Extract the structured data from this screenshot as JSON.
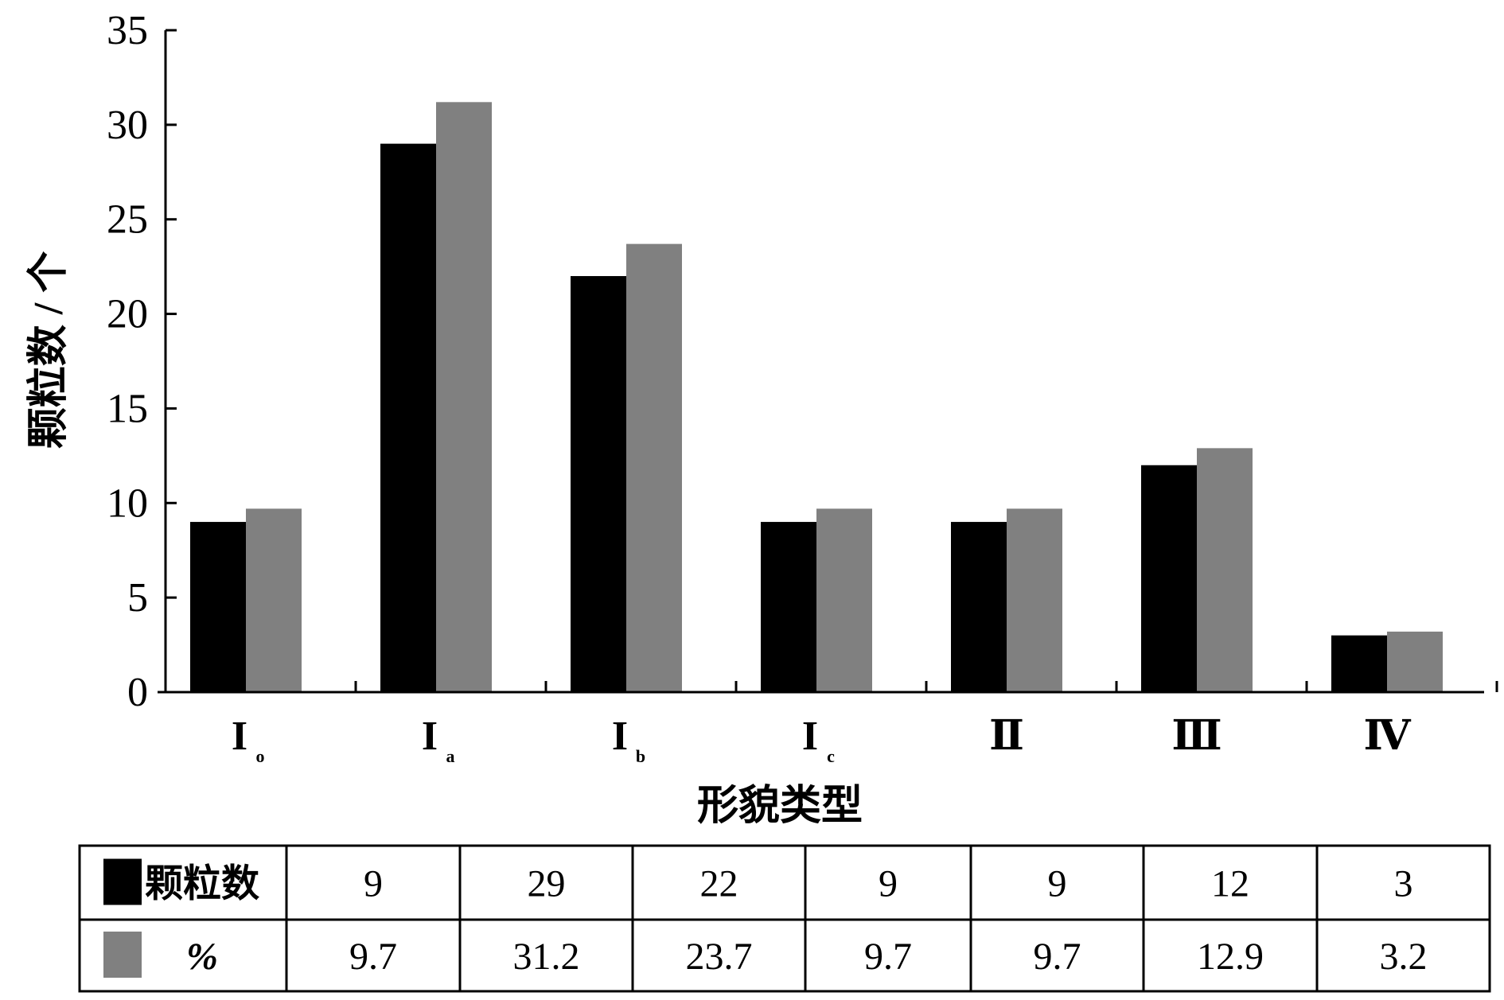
{
  "chart_data": {
    "type": "bar",
    "categories": [
      {
        "main": "I",
        "sub": "o"
      },
      {
        "main": "I",
        "sub": "a"
      },
      {
        "main": "I",
        "sub": "b"
      },
      {
        "main": "I",
        "sub": "c"
      },
      {
        "main": "Ⅱ",
        "sub": ""
      },
      {
        "main": "Ⅲ",
        "sub": ""
      },
      {
        "main": "Ⅳ",
        "sub": ""
      }
    ],
    "series": [
      {
        "name": "颗粒数",
        "color": "#000000",
        "values": [
          9,
          29,
          22,
          9,
          9,
          12,
          3
        ]
      },
      {
        "name": "%",
        "color": "#808080",
        "values": [
          9.7,
          31.2,
          23.7,
          9.7,
          9.7,
          12.9,
          3.2
        ]
      }
    ],
    "xlabel": "形貌类型",
    "ylabel": "颗粒数 / 个",
    "ylim": [
      0,
      35
    ],
    "yticks": [
      0,
      5,
      10,
      15,
      20,
      25,
      30,
      35
    ],
    "grid": false,
    "data_table": {
      "rows": [
        {
          "label": "颗粒数",
          "cells": [
            "9",
            "29",
            "22",
            "9",
            "9",
            "12",
            "3"
          ]
        },
        {
          "label": "%",
          "cells": [
            "9.7",
            "31.2",
            "23.7",
            "9.7",
            "9.7",
            "12.9",
            "3.2"
          ]
        }
      ]
    }
  }
}
